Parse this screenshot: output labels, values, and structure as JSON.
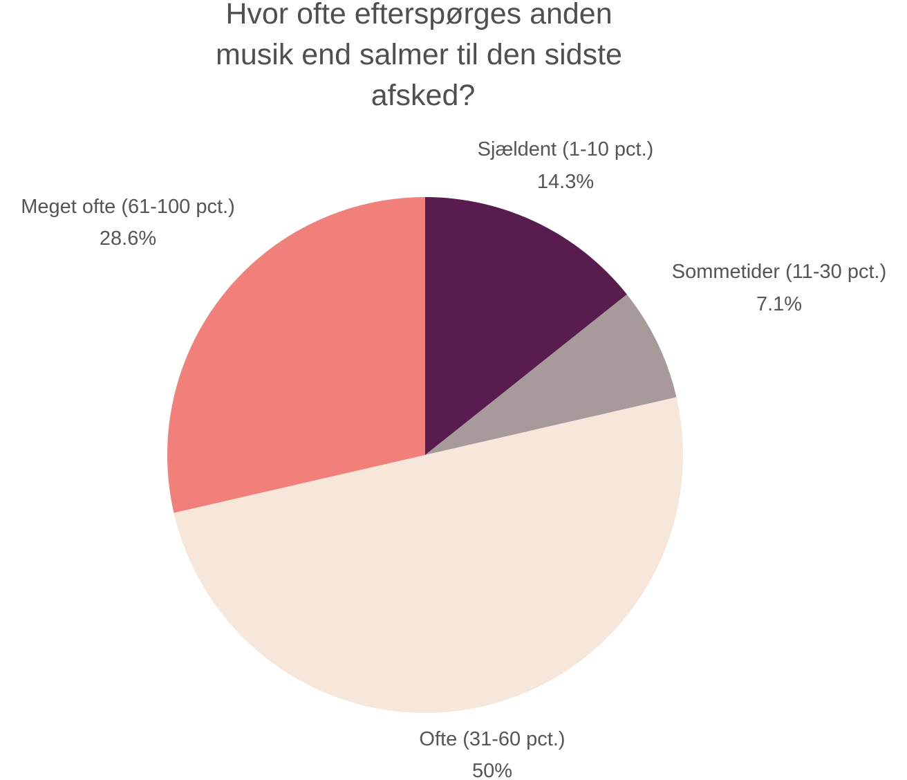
{
  "chart_data": {
    "type": "pie",
    "title_lines": [
      "Hvor ofte efterspørges anden",
      "musik end salmer til den sidste",
      "afsked?"
    ],
    "slices": [
      {
        "label": "Sjældent (1-10 pct.)",
        "value": 14.3,
        "value_label": "14.3%",
        "color": "#581c4e"
      },
      {
        "label": "Sommetider (11-30 pct.)",
        "value": 7.1,
        "value_label": "7.1%",
        "color": "#a8999b"
      },
      {
        "label": "Ofte (31-60 pct.)",
        "value": 50,
        "value_label": "50%",
        "color": "#f7e6da"
      },
      {
        "label": "Meget ofte (61-100 pct.)",
        "value": 28.6,
        "value_label": "28.6%",
        "color": "#f2807a"
      }
    ],
    "start_angle_deg": 0,
    "direction": "clockwise"
  }
}
